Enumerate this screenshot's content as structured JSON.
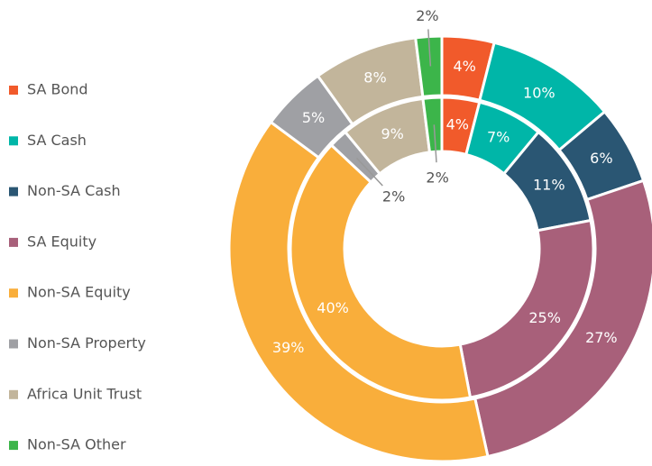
{
  "chart_data": {
    "type": "donut",
    "categories": [
      "SA Bond",
      "SA Cash",
      "Non-SA Cash",
      "SA Equity",
      "Non-SA Equity",
      "Non-SA Property",
      "Africa Unit Trust",
      "Non-SA Other"
    ],
    "colors": [
      "#f15a2b",
      "#00b6a8",
      "#2a5673",
      "#a8607a",
      "#f9ae3b",
      "#9fa0a4",
      "#c2b59b",
      "#3cb54a"
    ],
    "series": [
      {
        "values": [
          4,
          10,
          6,
          27,
          39,
          5,
          8,
          2
        ],
        "value_labels": [
          "4%",
          "10%",
          "6%",
          "27%",
          "39%",
          "5%",
          "8%",
          "2%"
        ]
      },
      {
        "values": [
          4,
          7,
          11,
          25,
          40,
          2,
          9,
          2
        ],
        "value_labels": [
          "4%",
          "7%",
          "11%",
          "25%",
          "40%",
          "2%",
          "9%",
          "2%"
        ]
      }
    ],
    "legend": "left"
  }
}
